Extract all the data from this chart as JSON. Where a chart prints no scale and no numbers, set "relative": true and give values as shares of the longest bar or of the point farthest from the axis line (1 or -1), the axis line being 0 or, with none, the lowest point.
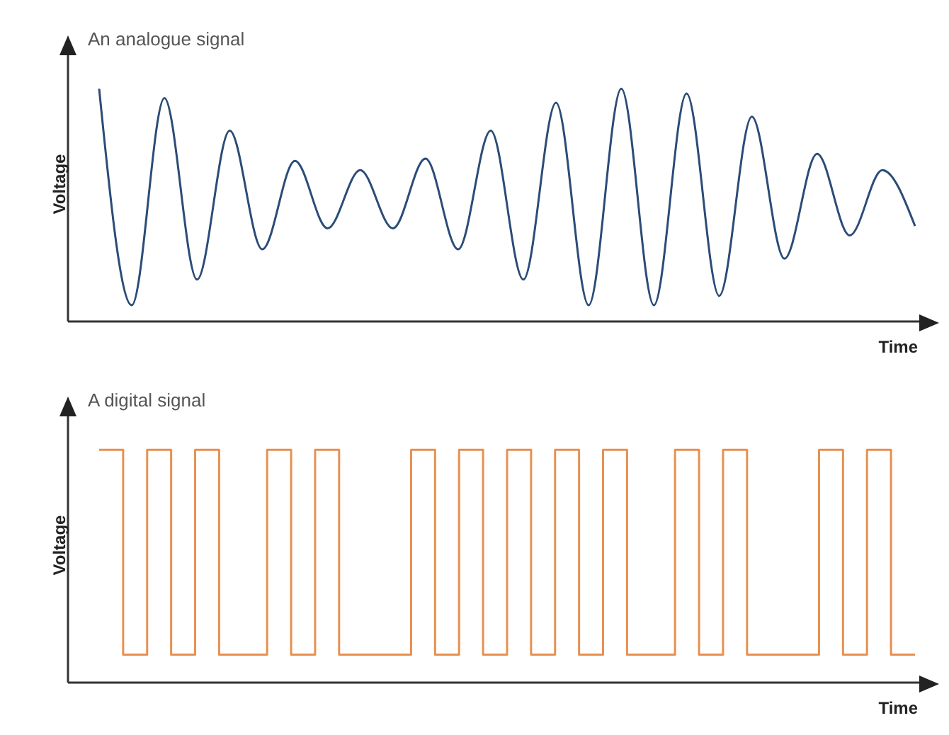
{
  "chart_data": [
    {
      "type": "line",
      "title": "An analogue signal",
      "ylabel": "Voltage",
      "xlabel": "Time",
      "relative": true,
      "color": "#2b4c78",
      "categories": [
        null,
        null,
        null,
        null,
        null,
        null,
        null,
        null,
        null,
        null,
        null,
        null,
        null,
        null,
        null,
        null,
        null,
        null,
        null,
        null,
        null,
        null,
        null,
        null,
        null,
        null
      ],
      "values": [
        1.0,
        0.07,
        0.96,
        0.18,
        0.82,
        0.31,
        0.69,
        0.4,
        0.65,
        0.4,
        0.7,
        0.31,
        0.82,
        0.18,
        0.94,
        0.07,
        1.0,
        0.07,
        0.98,
        0.11,
        0.88,
        0.27,
        0.72,
        0.37,
        0.65,
        0.41
      ]
    },
    {
      "type": "step",
      "title": "A digital signal",
      "ylabel": "Voltage",
      "xlabel": "Time",
      "relative": true,
      "color": "#e8904f",
      "categories": [
        null,
        null,
        null,
        null,
        null,
        null,
        null,
        null,
        null,
        null,
        null,
        null,
        null,
        null,
        null,
        null,
        null,
        null,
        null,
        null,
        null,
        null,
        null,
        null,
        null,
        null,
        null,
        null,
        null,
        null,
        null,
        null,
        null,
        null,
        null
      ],
      "values": [
        1,
        0.12,
        1,
        0.12,
        1,
        0.12,
        0.12,
        1,
        0.12,
        1,
        0.12,
        0.12,
        0.12,
        1,
        0.12,
        1,
        0.12,
        1,
        0.12,
        1,
        0.12,
        1,
        0.12,
        0.12,
        1,
        0.12,
        1,
        0.12,
        0.12,
        0.12,
        1,
        0.12,
        1,
        0.12,
        0.12
      ]
    }
  ]
}
